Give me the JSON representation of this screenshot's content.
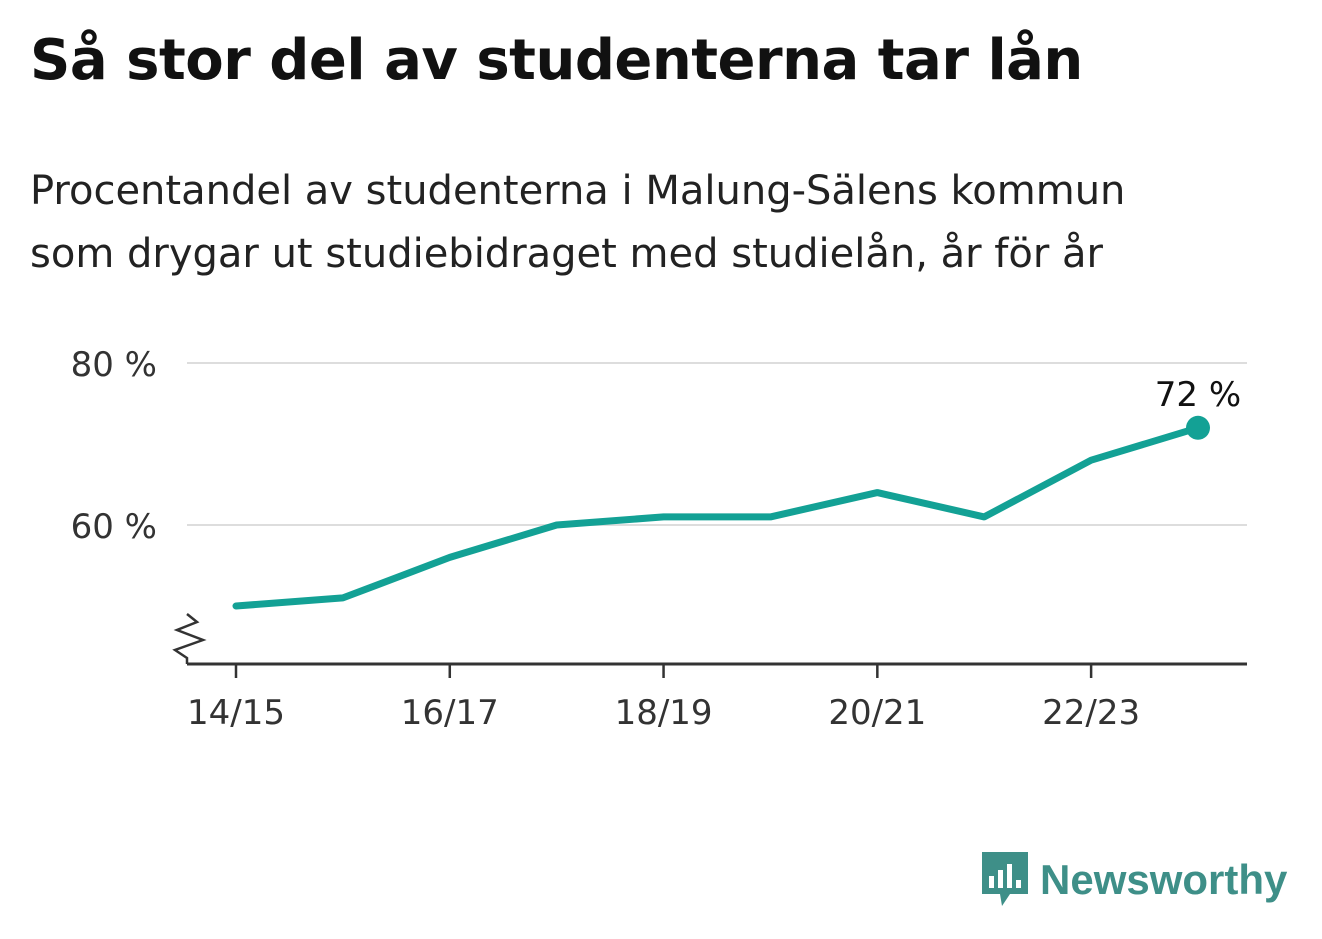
{
  "title": "Så stor del av studenterna tar lån",
  "subtitle_line1": "Procentandel av studenterna i Malung-Sälens kommun",
  "subtitle_line2": "som drygar ut studiebidraget med studielån, år för år",
  "brand": "Newsworthy",
  "colors": {
    "line": "#13a195",
    "grid": "#dddddd",
    "axis": "#333333",
    "brand": "#3e8f88"
  },
  "chart_data": {
    "type": "line",
    "categories": [
      "14/15",
      "15/16",
      "16/17",
      "17/18",
      "18/19",
      "19/20",
      "20/21",
      "21/22",
      "22/23",
      "23/24"
    ],
    "x_tick_labels": [
      "14/15",
      "16/17",
      "18/19",
      "20/21",
      "22/23"
    ],
    "series": [
      {
        "values": [
          50,
          51,
          56,
          60,
          61,
          61,
          64,
          61,
          68,
          72
        ]
      }
    ],
    "y_ticks": [
      "60 %",
      "80 %"
    ],
    "y_tick_values": [
      60,
      80
    ],
    "ylim": [
      44,
      80
    ],
    "y_axis_break": true,
    "last_value_label": "72 %",
    "grid": true
  }
}
